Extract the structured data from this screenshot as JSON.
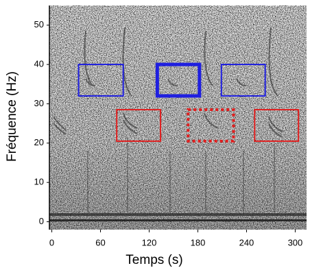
{
  "chart_data": {
    "type": "spectrogram",
    "x_label": "Temps (s)",
    "y_label": "Fréquence (Hz)",
    "xlim": [
      -3,
      314
    ],
    "ylim": [
      -2,
      55
    ],
    "xticks": [
      0,
      60,
      120,
      180,
      240,
      300
    ],
    "yticks": [
      0,
      10,
      20,
      30,
      40,
      50
    ],
    "regions": [
      {
        "x": [
          33,
          88
        ],
        "y": [
          32,
          40
        ],
        "color": "#1f1fe0",
        "line_width": 2,
        "line_style": "solid"
      },
      {
        "x": [
          130,
          182
        ],
        "y": [
          32,
          40
        ],
        "color": "#1f1fe0",
        "line_width": 5,
        "line_style": "solid"
      },
      {
        "x": [
          209,
          263
        ],
        "y": [
          32,
          40
        ],
        "color": "#1f1fe0",
        "line_width": 2,
        "line_style": "solid"
      },
      {
        "x": [
          80,
          134
        ],
        "y": [
          20.5,
          28.5
        ],
        "color": "#e01f1f",
        "line_width": 2,
        "line_style": "solid"
      },
      {
        "x": [
          168,
          224
        ],
        "y": [
          20.5,
          28.5
        ],
        "color": "#e01f1f",
        "line_width": 4,
        "line_style": "dotted"
      },
      {
        "x": [
          250,
          304
        ],
        "y": [
          20.5,
          28.5
        ],
        "color": "#e01f1f",
        "line_width": 2,
        "line_style": "solid"
      }
    ]
  }
}
